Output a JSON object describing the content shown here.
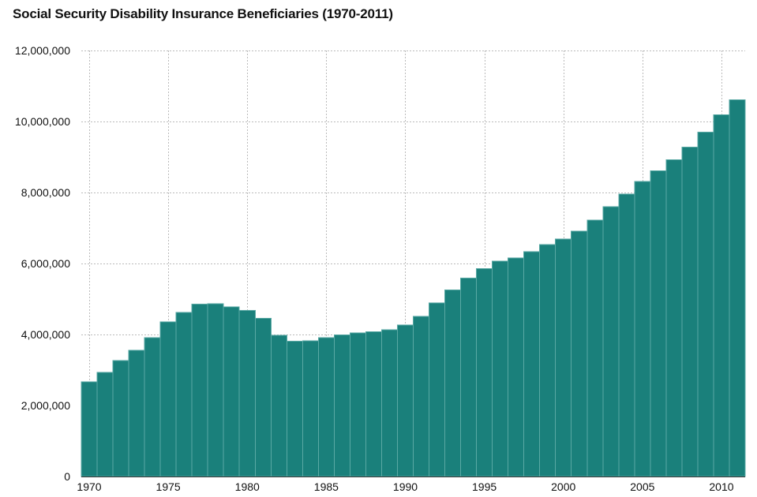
{
  "chart_data": {
    "type": "bar",
    "title": "Social Security Disability Insurance Beneficiaries (1970-2011)",
    "xlabel": "",
    "ylabel": "",
    "bar_color": "#1a807b",
    "bar_edge_color": "#5aa9a4",
    "ylim": [
      0,
      12000000
    ],
    "y_ticks": [
      0,
      2000000,
      4000000,
      6000000,
      8000000,
      10000000,
      12000000
    ],
    "y_tick_labels": [
      "0",
      "2,000,000",
      "4,000,000",
      "6,000,000",
      "8,000,000",
      "10,000,000",
      "12,000,000"
    ],
    "x_ticks": [
      1970,
      1975,
      1980,
      1985,
      1990,
      1995,
      2000,
      2005,
      2010
    ],
    "x_tick_labels": [
      "1970",
      "1975",
      "1980",
      "1985",
      "1990",
      "1995",
      "2000",
      "2005",
      "2010"
    ],
    "grid": true,
    "categories": [
      1970,
      1971,
      1972,
      1973,
      1974,
      1975,
      1976,
      1977,
      1978,
      1979,
      1980,
      1981,
      1982,
      1983,
      1984,
      1985,
      1986,
      1987,
      1988,
      1989,
      1990,
      1991,
      1992,
      1993,
      1994,
      1995,
      1996,
      1997,
      1998,
      1999,
      2000,
      2001,
      2002,
      2003,
      2004,
      2005,
      2006,
      2007,
      2008,
      2009,
      2010,
      2011
    ],
    "values": [
      2665000,
      2930000,
      3271000,
      3559000,
      3911000,
      4352000,
      4625000,
      4854000,
      4869000,
      4777000,
      4682000,
      4456000,
      3973000,
      3813000,
      3820000,
      3907000,
      3993000,
      4045000,
      4074000,
      4129000,
      4266000,
      4513000,
      4890000,
      5254000,
      5584000,
      5858000,
      6072000,
      6153000,
      6330000,
      6533000,
      6687000,
      6914000,
      7220000,
      7596000,
      7955000,
      8315000,
      8615000,
      8920000,
      9280000,
      9700000,
      10190000,
      10610000
    ]
  }
}
